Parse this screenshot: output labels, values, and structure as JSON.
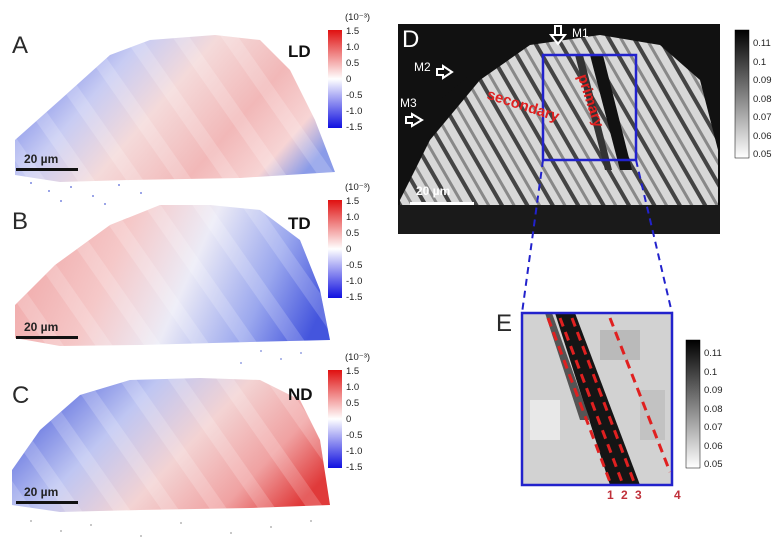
{
  "panels": {
    "A": {
      "letter": "A",
      "direction": "LD"
    },
    "B": {
      "letter": "B",
      "direction": "TD"
    },
    "C": {
      "letter": "C",
      "direction": "ND"
    },
    "D": {
      "letter": "D"
    },
    "E": {
      "letter": "E"
    }
  },
  "strain_colorbar": {
    "unit": "(10⁻³)",
    "ticks": [
      "1.5",
      "1.0",
      "0.5",
      "0",
      "-0.5",
      "-1.0",
      "-1.5"
    ],
    "colors": {
      "max": "#e02020",
      "zero": "#ffffff",
      "min": "#2020e0"
    }
  },
  "grey_colorbar": {
    "ticks_D": [
      "0.11",
      "0.1",
      "0.09",
      "0.08",
      "0.07",
      "0.06",
      "0.05"
    ],
    "ticks_E": [
      "0.11",
      "0.1",
      "0.09",
      "0.08",
      "0.07",
      "0.06",
      "0.05"
    ]
  },
  "scale_bar": "20 µm",
  "markers": {
    "m1": "M1",
    "m2": "M2",
    "m3": "M3"
  },
  "band_labels": {
    "secondary": "secondary",
    "primary": "primary"
  },
  "line_numbers": [
    "1",
    "2",
    "3",
    "4"
  ],
  "colors": {
    "box": "#2222cc",
    "annotation_red": "#e02020"
  }
}
